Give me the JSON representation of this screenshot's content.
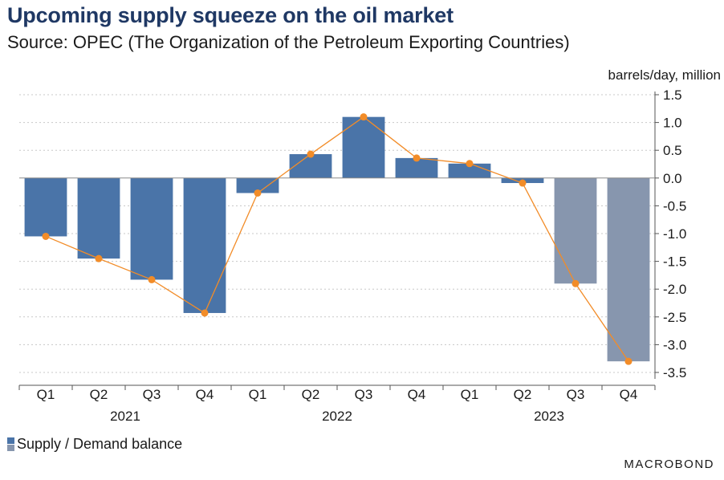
{
  "header": {
    "title": "Upcoming supply squeeze on the oil market",
    "subtitle": "Source: OPEC (The Organization of the Petroleum Exporting Countries)",
    "unit_label": "barrels/day, million"
  },
  "legend": {
    "label": "Supply / Demand balance"
  },
  "brand": "MACROBOND",
  "colors": {
    "bar_actual": "#4a74a8",
    "bar_forecast": "#8796ae",
    "line": "#f28c28",
    "grid": "#c8c8c8",
    "axis": "#555555",
    "title": "#1f3864"
  },
  "chart_data": {
    "type": "bar",
    "categories": [
      "Q1",
      "Q2",
      "Q3",
      "Q4",
      "Q1",
      "Q2",
      "Q3",
      "Q4",
      "Q1",
      "Q2",
      "Q3",
      "Q4"
    ],
    "years": [
      {
        "label": "2021",
        "start": 0,
        "end": 3
      },
      {
        "label": "2022",
        "start": 4,
        "end": 7
      },
      {
        "label": "2023",
        "start": 8,
        "end": 11
      }
    ],
    "series": [
      {
        "name": "Supply / Demand balance",
        "values": [
          -1.05,
          -1.45,
          -1.83,
          -2.43,
          -0.27,
          0.43,
          1.1,
          0.36,
          0.26,
          -0.09,
          -1.9,
          -3.3
        ],
        "shading": [
          "actual",
          "actual",
          "actual",
          "actual",
          "actual",
          "actual",
          "actual",
          "actual",
          "actual",
          "actual",
          "forecast",
          "forecast"
        ]
      }
    ],
    "line_values": [
      -1.05,
      -1.45,
      -1.83,
      -2.43,
      -0.27,
      0.43,
      1.1,
      0.36,
      0.26,
      -0.09,
      -1.9,
      -3.3
    ],
    "ylim": [
      -3.5,
      1.5
    ],
    "yticks": [
      1.5,
      1.0,
      0.5,
      0.0,
      -0.5,
      -1.0,
      -1.5,
      -2.0,
      -2.5,
      -3.0,
      -3.5
    ],
    "ytick_labels": [
      "1.5",
      "1.0",
      "0.5",
      "0.0",
      "-0.5",
      "-1.0",
      "-1.5",
      "-2.0",
      "-2.5",
      "-3.0",
      "-3.5"
    ],
    "y_axis_side": "right",
    "grid": true
  }
}
